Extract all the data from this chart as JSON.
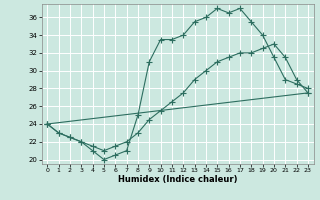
{
  "xlabel": "Humidex (Indice chaleur)",
  "xlim": [
    -0.5,
    23.5
  ],
  "ylim": [
    19.5,
    37.5
  ],
  "yticks": [
    20,
    22,
    24,
    26,
    28,
    30,
    32,
    34,
    36
  ],
  "xticks": [
    0,
    1,
    2,
    3,
    4,
    5,
    6,
    7,
    8,
    9,
    10,
    11,
    12,
    13,
    14,
    15,
    16,
    17,
    18,
    19,
    20,
    21,
    22,
    23
  ],
  "bg_color": "#cce8e0",
  "grid_color": "#ffffff",
  "line_color": "#2d6e60",
  "curve1_x": [
    0,
    1,
    2,
    3,
    4,
    5,
    6,
    7,
    8,
    9,
    10,
    11,
    12,
    13,
    14,
    15,
    16,
    17,
    18,
    19,
    20,
    21,
    22,
    23
  ],
  "curve1_y": [
    24,
    23,
    22.5,
    22,
    21,
    20,
    20.5,
    21,
    25,
    31,
    33.5,
    33.5,
    34,
    35.5,
    36,
    37,
    36.5,
    37,
    35.5,
    34,
    31.5,
    29,
    28.5,
    28
  ],
  "curve2_x": [
    0,
    1,
    2,
    3,
    4,
    5,
    6,
    7,
    8,
    9,
    10,
    11,
    12,
    13,
    14,
    15,
    16,
    17,
    18,
    19,
    20,
    21,
    22,
    23
  ],
  "curve2_y": [
    24,
    23,
    22.5,
    22,
    21.5,
    21,
    21.5,
    22,
    23,
    24.5,
    25.5,
    26.5,
    27.5,
    29,
    30,
    31,
    31.5,
    32,
    32,
    32.5,
    33,
    31.5,
    29,
    27.5
  ],
  "curve3_x": [
    0,
    23
  ],
  "curve3_y": [
    24,
    27.5
  ]
}
